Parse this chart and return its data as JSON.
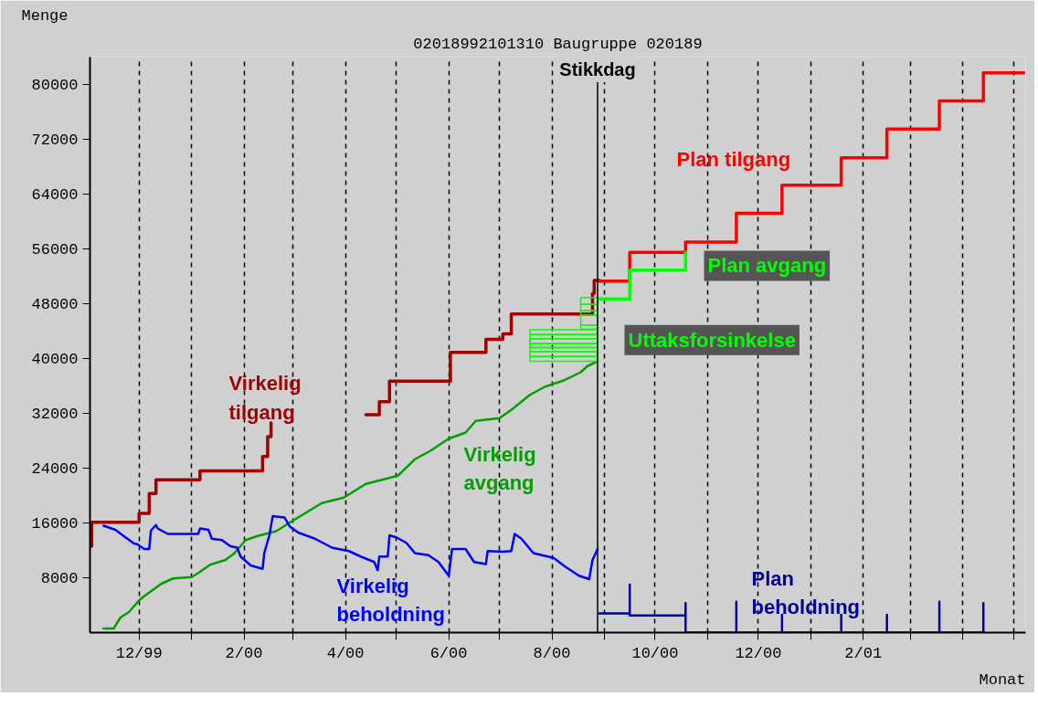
{
  "chart_data": {
    "type": "step",
    "title": "02018992101310 Baugruppe 020189",
    "ylabel": "Menge",
    "xlabel": "Monat",
    "xlim": [
      "1999-11-02",
      "2001-05-08"
    ],
    "xticks": [
      {
        "value": "1999-12-01",
        "label": "12/99"
      },
      {
        "value": "2000-01-01",
        "label": null
      },
      {
        "value": "2000-02-01",
        "label": "2/00"
      },
      {
        "value": "2000-03-01",
        "label": null
      },
      {
        "value": "2000-04-01",
        "label": "4/00"
      },
      {
        "value": "2000-05-01",
        "label": null
      },
      {
        "value": "2000-06-01",
        "label": "6/00"
      },
      {
        "value": "2000-07-01",
        "label": null
      },
      {
        "value": "2000-08-01",
        "label": "8/00"
      },
      {
        "value": "2000-09-01",
        "label": null
      },
      {
        "value": "2000-10-01",
        "label": "10/00"
      },
      {
        "value": "2000-11-01",
        "label": null
      },
      {
        "value": "2000-12-01",
        "label": "12/00"
      },
      {
        "value": "2001-01-01",
        "label": null
      },
      {
        "value": "2001-02-01",
        "label": "2/01"
      },
      {
        "value": "2001-03-01",
        "label": null
      },
      {
        "value": "2001-04-01",
        "label": null
      },
      {
        "value": "2001-05-01",
        "label": null
      }
    ],
    "ylim": [
      0,
      84000
    ],
    "yticks": [
      8000,
      16000,
      24000,
      32000,
      40000,
      48000,
      56000,
      64000,
      72000,
      80000
    ],
    "grid": "x",
    "legend": false,
    "ref_lines": [
      {
        "axis": "x",
        "value": "2000-08-28",
        "label": "Stikkdag",
        "color": "#000000"
      }
    ],
    "series": [
      {
        "name": "Virkelig tilgang",
        "color": "#a00000",
        "x": [
          "1999-11-02",
          "1999-11-03",
          "1999-12-01",
          "1999-12-07",
          "1999-12-11",
          "2000-01-06",
          "2000-02-12",
          "2000-02-15",
          "2000-02-17",
          "2000-03-15",
          "2000-04-13",
          "2000-04-21",
          "2000-04-27",
          "2000-06-02",
          "2000-06-23",
          "2000-07-03",
          "2000-07-08",
          "2000-08-25",
          "2000-08-26",
          "2000-08-29"
        ],
        "values": [
          12600,
          16100,
          17400,
          20300,
          22300,
          23600,
          25700,
          28600,
          30600,
          null,
          31800,
          33700,
          36700,
          40900,
          42800,
          43600,
          46500,
          49500,
          51400,
          51400
        ]
      },
      {
        "name": "Plan tilgang",
        "color": "#ff0000",
        "x": [
          "2000-08-29",
          "2000-09-16",
          "2000-10-19",
          "2000-11-18",
          "2000-12-15",
          "2001-01-19",
          "2001-02-15",
          "2001-03-18",
          "2001-04-13",
          "2001-05-07"
        ],
        "values": [
          51300,
          55500,
          57000,
          61200,
          65300,
          69300,
          73500,
          77600,
          81700,
          81700
        ]
      },
      {
        "name": "Virkelig avgang",
        "type": "line",
        "color": "#00a000",
        "x": [
          "1999-11-10",
          "1999-11-16",
          "1999-11-20",
          "1999-11-25",
          "1999-12-01",
          "1999-12-04",
          "1999-12-14",
          "1999-12-21",
          "2000-01-01",
          "2000-01-05",
          "2000-01-12",
          "2000-01-21",
          "2000-01-26",
          "2000-02-02",
          "2000-02-09",
          "2000-02-20",
          "2000-03-02",
          "2000-03-18",
          "2000-03-31",
          "2000-04-13",
          "2000-05-02",
          "2000-05-12",
          "2000-05-21",
          "2000-06-01",
          "2000-06-11",
          "2000-06-17",
          "2000-07-01",
          "2000-07-08",
          "2000-07-19",
          "2000-07-28",
          "2000-08-08",
          "2000-08-18",
          "2000-08-22",
          "2000-08-28"
        ],
        "values": [
          600,
          600,
          2200,
          3000,
          4700,
          5300,
          7100,
          7900,
          8100,
          8700,
          9900,
          10600,
          11500,
          13500,
          14100,
          14800,
          16500,
          18900,
          19700,
          21700,
          22900,
          25300,
          26500,
          28300,
          29200,
          30900,
          31300,
          32500,
          34700,
          35900,
          36800,
          38000,
          38900,
          39600
        ]
      },
      {
        "name": "Plan avgang",
        "color": "#00ff00",
        "x": [
          "2000-08-29",
          "2000-09-16",
          "2000-10-19"
        ],
        "values": [
          48700,
          52900,
          55500
        ]
      },
      {
        "name": "Uttaksforsinkelse",
        "type": "bar",
        "color": "#00ff00",
        "x": [
          "2000-08-08",
          "2000-08-23"
        ],
        "base": [
          39600,
          44300
        ],
        "values": [
          700,
          600
        ]
      },
      {
        "name": "Virkelig beholdning",
        "type": "line",
        "color": "#0000ff",
        "x": [
          "1999-11-10",
          "1999-11-17",
          "1999-11-23",
          "1999-11-28",
          "1999-11-30",
          "1999-12-04",
          "1999-12-07",
          "1999-12-08",
          "1999-12-11",
          "1999-12-12",
          "1999-12-18",
          "2000-01-05",
          "2000-01-06",
          "2000-01-11",
          "2000-01-13",
          "2000-01-19",
          "2000-01-24",
          "2000-01-28",
          "2000-01-30",
          "2000-02-05",
          "2000-02-12",
          "2000-02-13",
          "2000-02-16",
          "2000-02-18",
          "2000-02-25",
          "2000-02-28",
          "2000-03-04",
          "2000-03-14",
          "2000-03-24",
          "2000-04-03",
          "2000-04-10",
          "2000-04-18",
          "2000-04-20",
          "2000-04-21",
          "2000-04-26",
          "2000-04-27",
          "2000-05-01",
          "2000-05-07",
          "2000-05-12",
          "2000-05-20",
          "2000-05-26",
          "2000-06-01",
          "2000-06-03",
          "2000-06-11",
          "2000-06-16",
          "2000-06-23",
          "2000-06-24",
          "2000-07-03",
          "2000-07-08",
          "2000-07-10",
          "2000-07-14",
          "2000-07-21",
          "2000-08-02",
          "2000-08-09",
          "2000-08-17",
          "2000-08-23",
          "2000-08-25",
          "2000-08-28"
        ],
        "values": [
          15600,
          15000,
          13900,
          13000,
          12900,
          12200,
          12200,
          14900,
          15700,
          15200,
          14400,
          14400,
          15200,
          15000,
          13700,
          13500,
          12600,
          12400,
          11100,
          9800,
          9300,
          11600,
          14200,
          17000,
          16800,
          15500,
          14600,
          13700,
          12400,
          11900,
          11100,
          10300,
          9100,
          11100,
          11100,
          14200,
          13900,
          13100,
          11600,
          11300,
          10300,
          8300,
          12200,
          12200,
          10300,
          10000,
          11900,
          11800,
          11900,
          14400,
          13700,
          11600,
          10900,
          9600,
          8300,
          7800,
          10600,
          12200
        ]
      },
      {
        "name": "Plan beholdning",
        "type": "line",
        "color": "#000099",
        "x": [
          "2000-08-29",
          "2000-09-16",
          "2000-09-16",
          "2000-09-16",
          "2000-10-19",
          "2000-10-19",
          "2000-10-19",
          "2000-11-18",
          "2000-11-18",
          "2000-11-18",
          "2000-12-15",
          "2000-12-15",
          "2000-12-15",
          "2001-01-19",
          "2001-01-19",
          "2001-01-19",
          "2001-02-15",
          "2001-02-15",
          "2001-02-15",
          "2001-03-18",
          "2001-03-18",
          "2001-03-18",
          "2001-04-13",
          "2001-04-13",
          "2001-04-13"
        ],
        "values": [
          2800,
          2800,
          7000,
          2500,
          2500,
          4300,
          0,
          0,
          4500,
          0,
          0,
          2600,
          0,
          0,
          2600,
          0,
          0,
          2600,
          0,
          0,
          4500,
          0,
          0,
          4300,
          0
        ]
      },
      {
        "type": "bar",
        "color": "#00ff00",
        "x": [
          "2000-08-08",
          "2000-08-23"
        ],
        "values": [
          700,
          1400
        ]
      },
      {
        "type": "bar",
        "color": "#00ff00",
        "x": [
          "2000-08-08",
          "2000-08-23"
        ],
        "values": [
          600,
          700
        ]
      },
      {
        "type": "bar",
        "color": "#00ff00",
        "x": [
          "2000-08-08",
          "2000-08-23"
        ],
        "values": [
          600,
          900
        ]
      },
      {
        "type": "bar",
        "color": "#00ff00",
        "x": [
          "2000-08-08",
          "2000-08-23"
        ],
        "values": [
          700,
          1000
        ]
      },
      {
        "type": "bar",
        "color": "#00ff00",
        "x": [
          "2000-08-08"
        ],
        "values": [
          600
        ]
      },
      {
        "type": "bar",
        "color": "#00ff00",
        "x": [
          "2000-08-08"
        ],
        "values": [
          700
        ]
      }
    ],
    "stacked": true
  }
}
